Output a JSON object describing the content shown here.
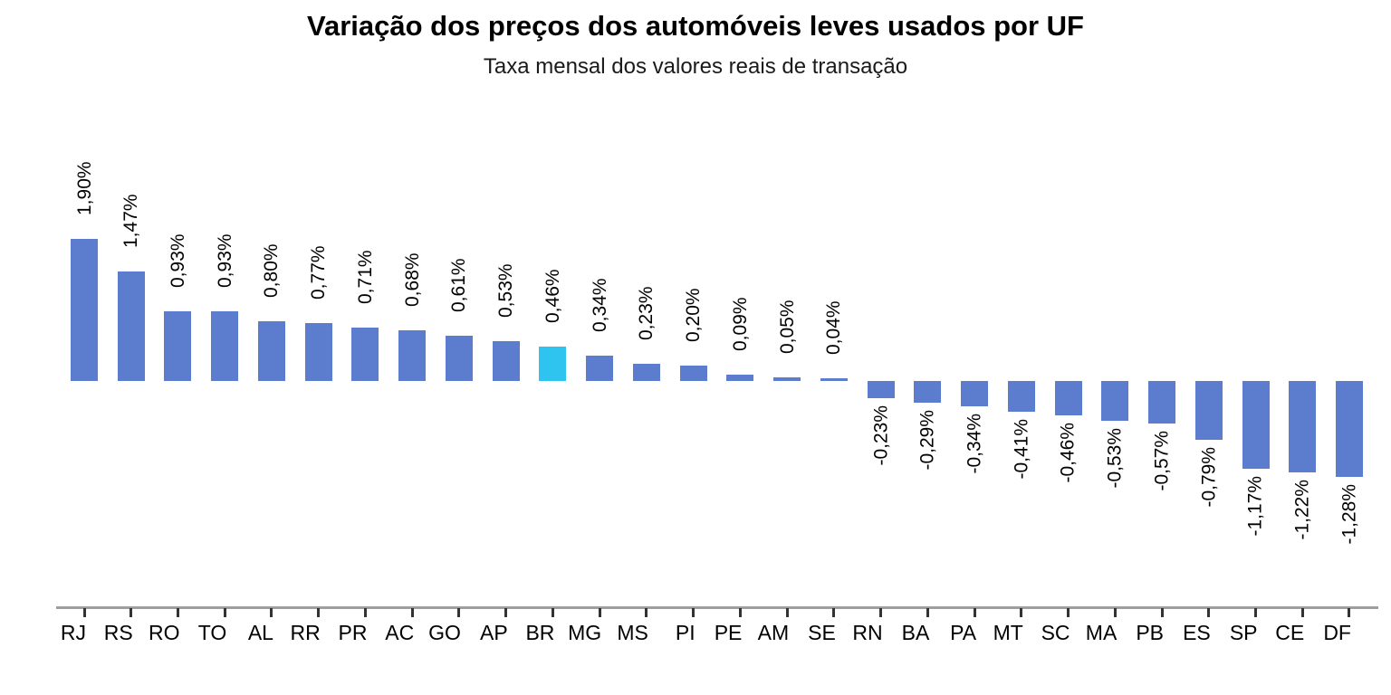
{
  "chart": {
    "title": "Variação dos preços dos automóveis leves usados por UF",
    "subtitle": "Taxa mensal dos valores reais de transação"
  },
  "chart_data": {
    "type": "bar",
    "title": "Variação dos preços dos automóveis leves usados por UF",
    "subtitle": "Taxa mensal dos valores reais de transação",
    "xlabel": "",
    "ylabel": "",
    "categories": [
      "RJ",
      "RS",
      "RO",
      "TO",
      "AL",
      "RR",
      "PR",
      "AC",
      "GO",
      "AP",
      "BR",
      "MG",
      "MS",
      "PI",
      "PE",
      "AM",
      "SE",
      "RN",
      "BA",
      "PA",
      "MT",
      "SC",
      "MA",
      "PB",
      "ES",
      "SP",
      "CE",
      "DF"
    ],
    "values": [
      1.9,
      1.47,
      0.93,
      0.93,
      0.8,
      0.77,
      0.71,
      0.68,
      0.61,
      0.53,
      0.46,
      0.34,
      0.23,
      0.2,
      0.09,
      0.05,
      0.04,
      -0.23,
      -0.29,
      -0.34,
      -0.41,
      -0.46,
      -0.53,
      -0.57,
      -0.79,
      -1.17,
      -1.22,
      -1.28
    ],
    "value_labels": [
      "1,90%",
      "1,47%",
      "0,93%",
      "0,93%",
      "0,80%",
      "0,77%",
      "0,71%",
      "0,68%",
      "0,61%",
      "0,53%",
      "0,46%",
      "0,34%",
      "0,23%",
      "0,20%",
      "0,09%",
      "0,05%",
      "0,04%",
      "-0,23%",
      "-0,29%",
      "-0,34%",
      "-0,41%",
      "-0,46%",
      "-0,53%",
      "-0,57%",
      "-0,79%",
      "-1,17%",
      "-1,22%",
      "-1,28%"
    ],
    "highlight_category": "BR",
    "baseline": 0,
    "ylim": [
      -1.5,
      2.1
    ],
    "grid": false,
    "legend": false,
    "colors": {
      "bar": "#5C7CCD",
      "highlight": "#2FC4EF",
      "axis_line": "#9E9E9E",
      "tick": "#333333",
      "text": "#000000"
    }
  }
}
